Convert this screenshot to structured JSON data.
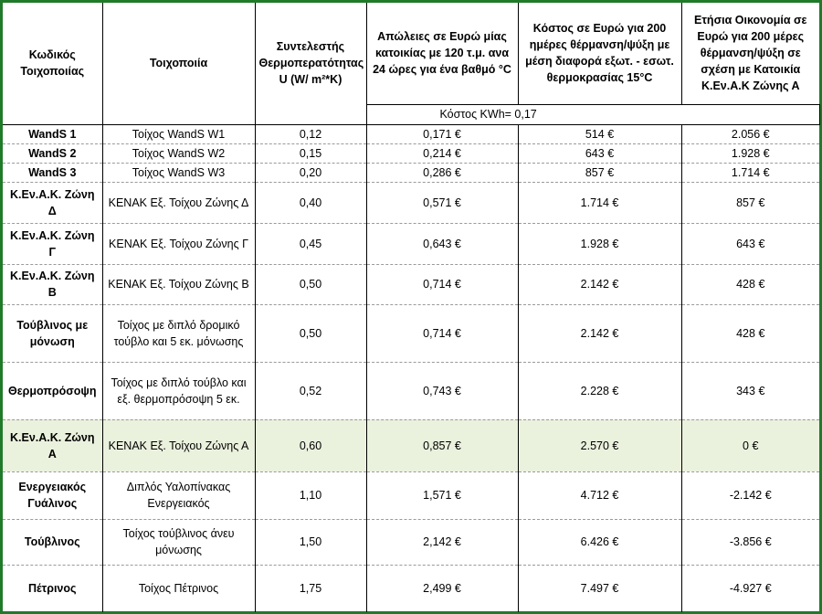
{
  "headers": {
    "code": "Κωδικός Τοιχοποιίας",
    "wall": "Τοιχοποιία",
    "u_value": "Συντελεστής Θερμοπερατότητας U (W/ m²*K)",
    "loss": "Απώλειες σε Ευρώ  μίας κατοικίας με 120 τ.μ. ανα 24 ώρες για ένα βαθμό °C",
    "cost200": "Κόστος σε Ευρώ για 200 ημέρες θέρμανση/ψύξη  με μέση διαφορά εξωτ. - εσωτ. θερμοκρασίας  15°C",
    "savings": "Ετήσια Οικονομία σε Ευρώ για 200 μέρες θέρμανση/ψύξη σε σχέση με Κατοικία Κ.Εν.Α.Κ Ζώνης Α"
  },
  "kwh_cost_note": "Κόστος KWh= 0,17",
  "highlight_color": "#eaf1dd",
  "frame_color": "#1f7a2a",
  "rows": [
    {
      "code": "WandS 1",
      "wall": "Τοίχος WandS  W1",
      "u": "0,12",
      "loss": "0,171 €",
      "cost": "514 €",
      "savings": "2.056 €"
    },
    {
      "code": "WandS 2",
      "wall": "Τοίχος WandS  W2",
      "u": "0,15",
      "loss": "0,214 €",
      "cost": "643 €",
      "savings": "1.928 €"
    },
    {
      "code": "WandS 3",
      "wall": "Τοίχος WandS  W3",
      "u": "0,20",
      "loss": "0,286 €",
      "cost": "857 €",
      "savings": "1.714 €"
    },
    {
      "code": "Κ.Εν.Α.Κ. Ζώνη Δ",
      "wall": "ΚΕΝΑΚ Εξ. Τοίχου Ζώνης Δ",
      "u": "0,40",
      "loss": "0,571 €",
      "cost": "1.714 €",
      "savings": "857 €"
    },
    {
      "code": "Κ.Εν.Α.Κ. Ζώνη Γ",
      "wall": "ΚΕΝΑΚ Εξ. Τοίχου Ζώνης Γ",
      "u": "0,45",
      "loss": "0,643 €",
      "cost": "1.928 €",
      "savings": "643 €"
    },
    {
      "code": "Κ.Εν.Α.Κ. Ζώνη Β",
      "wall": "ΚΕΝΑΚ Εξ. Τοίχου Ζώνης Β",
      "u": "0,50",
      "loss": "0,714 €",
      "cost": "2.142 €",
      "savings": "428 €"
    },
    {
      "code": "Τούβλινος με μόνωση",
      "wall": "Τοίχος με διπλό δρομικό τούβλο και 5 εκ. μόνωσης",
      "u": "0,50",
      "loss": "0,714 €",
      "cost": "2.142 €",
      "savings": "428 €"
    },
    {
      "code": "Θερμοπρόσοψη",
      "wall": "Τοίχος με διπλό τούβλο και εξ. θερμοπρόσοψη 5 εκ.",
      "u": "0,52",
      "loss": "0,743 €",
      "cost": "2.228 €",
      "savings": "343 €"
    },
    {
      "code": "Κ.Εν.Α.Κ. Ζώνη Α",
      "wall": "ΚΕΝΑΚ Εξ. Τοίχου Ζώνης Α",
      "u": "0,60",
      "loss": "0,857 €",
      "cost": "2.570 €",
      "savings": "0 €"
    },
    {
      "code": "Ενεργειακός Γυάλινος",
      "wall": "Διπλός Υαλοπίνακας Ενεργειακός",
      "u": "1,10",
      "loss": "1,571 €",
      "cost": "4.712 €",
      "savings": "-2.142 €"
    },
    {
      "code": "Τούβλινος",
      "wall": "Τοίχος τούβλινος άνευ μόνωσης",
      "u": "1,50",
      "loss": "2,142 €",
      "cost": "6.426 €",
      "savings": "-3.856 €"
    },
    {
      "code": "Πέτρινος",
      "wall": "Τοίχος Πέτρινος",
      "u": "1,75",
      "loss": "2,499 €",
      "cost": "7.497 €",
      "savings": "-4.927 €"
    }
  ]
}
